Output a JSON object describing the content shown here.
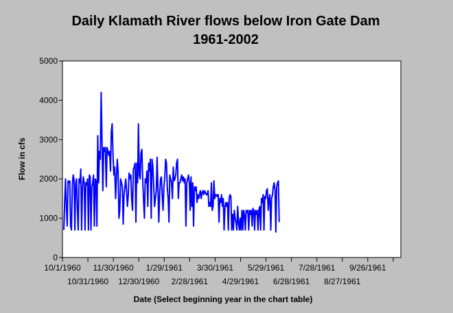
{
  "chart_data": {
    "type": "line",
    "title_line1": "Daily Klamath River flows below Iron Gate Dam",
    "title_line2": "1961-2002",
    "xlabel": "Date (Select beginning year in the chart table)",
    "ylabel": "Flow in cfs",
    "ylim": [
      0,
      5000
    ],
    "yticks": [
      "0",
      "1000",
      "2000",
      "3000",
      "4000",
      "5000"
    ],
    "xticks_upper": [
      "10/1/1960",
      "11/30/1960",
      "1/29/1961",
      "3/30/1961",
      "5/29/1961",
      "7/28/1961",
      "9/26/1961"
    ],
    "xticks_lower": [
      "10/31/1960",
      "12/30/1960",
      "2/28/1961",
      "4/29/1961",
      "6/28/1961",
      "8/27/1961"
    ],
    "grid": false,
    "legend": "none",
    "line_color": "#0000ff",
    "series": [
      {
        "values": [
          [
            0,
            700
          ],
          [
            1,
            1400
          ],
          [
            2,
            2000
          ],
          [
            3,
            1300
          ],
          [
            4,
            800
          ],
          [
            5,
            1950
          ],
          [
            6,
            1900
          ],
          [
            7,
            1950
          ],
          [
            8,
            800
          ],
          [
            9,
            700
          ],
          [
            10,
            1850
          ],
          [
            11,
            2100
          ],
          [
            12,
            2000
          ],
          [
            13,
            700
          ],
          [
            14,
            1900
          ],
          [
            15,
            2000
          ],
          [
            16,
            1200
          ],
          [
            17,
            700
          ],
          [
            18,
            2000
          ],
          [
            19,
            1900
          ],
          [
            20,
            2250
          ],
          [
            21,
            700
          ],
          [
            22,
            1800
          ],
          [
            23,
            2050
          ],
          [
            24,
            1900
          ],
          [
            25,
            700
          ],
          [
            26,
            1900
          ],
          [
            27,
            1850
          ],
          [
            28,
            2000
          ],
          [
            29,
            700
          ],
          [
            30,
            2100
          ],
          [
            31,
            2050
          ],
          [
            32,
            700
          ],
          [
            33,
            1800
          ],
          [
            34,
            1900
          ],
          [
            35,
            2100
          ],
          [
            36,
            800
          ],
          [
            37,
            2000
          ],
          [
            38,
            1950
          ],
          [
            39,
            800
          ],
          [
            40,
            3100
          ],
          [
            41,
            1900
          ],
          [
            42,
            2700
          ],
          [
            43,
            2500
          ],
          [
            44,
            4200
          ],
          [
            45,
            3000
          ],
          [
            46,
            1700
          ],
          [
            47,
            2800
          ],
          [
            48,
            2700
          ],
          [
            49,
            2800
          ],
          [
            50,
            1800
          ],
          [
            51,
            2800
          ],
          [
            52,
            2700
          ],
          [
            53,
            2600
          ],
          [
            54,
            2700
          ],
          [
            55,
            2200
          ],
          [
            56,
            3200
          ],
          [
            57,
            3400
          ],
          [
            58,
            2600
          ],
          [
            59,
            2100
          ],
          [
            60,
            2300
          ],
          [
            61,
            1500
          ],
          [
            62,
            2000
          ],
          [
            63,
            2500
          ],
          [
            64,
            2200
          ],
          [
            65,
            1000
          ],
          [
            66,
            1200
          ],
          [
            67,
            2000
          ],
          [
            68,
            1900
          ],
          [
            69,
            1800
          ],
          [
            70,
            850
          ],
          [
            71,
            1600
          ],
          [
            72,
            1800
          ],
          [
            73,
            2000
          ],
          [
            74,
            1700
          ],
          [
            75,
            1300
          ],
          [
            76,
            1600
          ],
          [
            77,
            2150
          ],
          [
            78,
            2000
          ],
          [
            79,
            2100
          ],
          [
            80,
            1500
          ],
          [
            81,
            1200
          ],
          [
            82,
            2250
          ],
          [
            83,
            2300
          ],
          [
            84,
            2400
          ],
          [
            85,
            900
          ],
          [
            86,
            2400
          ],
          [
            87,
            1900
          ],
          [
            88,
            3400
          ],
          [
            89,
            2100
          ],
          [
            90,
            2000
          ],
          [
            91,
            2650
          ],
          [
            92,
            2750
          ],
          [
            93,
            2000
          ],
          [
            94,
            1500
          ],
          [
            95,
            1000
          ],
          [
            96,
            2000
          ],
          [
            97,
            1900
          ],
          [
            98,
            2200
          ],
          [
            99,
            1300
          ],
          [
            100,
            2400
          ],
          [
            101,
            2200
          ],
          [
            102,
            2500
          ],
          [
            103,
            1000
          ],
          [
            104,
            2500
          ],
          [
            105,
            2300
          ],
          [
            106,
            1800
          ],
          [
            107,
            1300
          ],
          [
            108,
            1500
          ],
          [
            109,
            1700
          ],
          [
            110,
            2550
          ],
          [
            111,
            1700
          ],
          [
            112,
            900
          ],
          [
            113,
            1600
          ],
          [
            114,
            2000
          ],
          [
            115,
            2050
          ],
          [
            116,
            1600
          ],
          [
            117,
            1200
          ],
          [
            118,
            1800
          ],
          [
            119,
            2000
          ],
          [
            120,
            2500
          ],
          [
            121,
            2400
          ],
          [
            122,
            1800
          ],
          [
            123,
            1500
          ],
          [
            124,
            900
          ],
          [
            125,
            2100
          ],
          [
            126,
            2000
          ],
          [
            127,
            1900
          ],
          [
            128,
            1500
          ],
          [
            129,
            2300
          ],
          [
            130,
            1950
          ],
          [
            131,
            2000
          ],
          [
            132,
            2100
          ],
          [
            133,
            2400
          ],
          [
            134,
            2500
          ],
          [
            135,
            1500
          ],
          [
            136,
            1900
          ],
          [
            137,
            1900
          ],
          [
            138,
            2000
          ],
          [
            139,
            2100
          ],
          [
            140,
            1950
          ],
          [
            141,
            2050
          ],
          [
            142,
            1900
          ],
          [
            143,
            2000
          ],
          [
            144,
            800
          ],
          [
            145,
            1900
          ],
          [
            146,
            2000
          ],
          [
            147,
            2100
          ],
          [
            148,
            1900
          ],
          [
            149,
            1200
          ],
          [
            150,
            2050
          ],
          [
            151,
            1300
          ],
          [
            152,
            1900
          ],
          [
            153,
            800
          ],
          [
            154,
            1800
          ],
          [
            155,
            1700
          ],
          [
            156,
            1800
          ],
          [
            157,
            1400
          ],
          [
            158,
            1600
          ],
          [
            159,
            1500
          ],
          [
            160,
            1600
          ],
          [
            161,
            1700
          ],
          [
            162,
            1500
          ],
          [
            163,
            1650
          ],
          [
            164,
            1700
          ],
          [
            165,
            1600
          ],
          [
            166,
            1700
          ],
          [
            167,
            1650
          ],
          [
            168,
            1600
          ],
          [
            169,
            1600
          ],
          [
            170,
            1700
          ],
          [
            171,
            1300
          ],
          [
            172,
            1400
          ],
          [
            173,
            1300
          ],
          [
            174,
            1900
          ],
          [
            175,
            1200
          ],
          [
            176,
            1300
          ],
          [
            177,
            1950
          ],
          [
            178,
            1500
          ],
          [
            179,
            1600
          ],
          [
            180,
            1600
          ],
          [
            181,
            1550
          ],
          [
            182,
            1600
          ],
          [
            183,
            900
          ],
          [
            184,
            1500
          ],
          [
            185,
            1400
          ],
          [
            186,
            1600
          ],
          [
            187,
            1300
          ],
          [
            188,
            1500
          ],
          [
            189,
            700
          ],
          [
            190,
            1300
          ],
          [
            191,
            1400
          ],
          [
            192,
            1300
          ],
          [
            193,
            1400
          ],
          [
            194,
            700
          ],
          [
            195,
            1500
          ],
          [
            196,
            1600
          ],
          [
            197,
            1550
          ],
          [
            198,
            700
          ],
          [
            199,
            1100
          ],
          [
            200,
            700
          ],
          [
            201,
            1200
          ],
          [
            202,
            1000
          ],
          [
            203,
            900
          ],
          [
            204,
            700
          ],
          [
            205,
            1300
          ],
          [
            206,
            900
          ],
          [
            207,
            700
          ],
          [
            208,
            1000
          ],
          [
            209,
            700
          ],
          [
            210,
            1200
          ],
          [
            211,
            700
          ],
          [
            212,
            1200
          ],
          [
            213,
            1100
          ],
          [
            214,
            700
          ],
          [
            215,
            1200
          ],
          [
            216,
            1150
          ],
          [
            217,
            1200
          ],
          [
            218,
            700
          ],
          [
            219,
            1200
          ],
          [
            220,
            1100
          ],
          [
            221,
            1200
          ],
          [
            222,
            800
          ],
          [
            223,
            1250
          ],
          [
            224,
            1200
          ],
          [
            225,
            700
          ],
          [
            226,
            1200
          ],
          [
            227,
            1100
          ],
          [
            228,
            1200
          ],
          [
            229,
            700
          ],
          [
            230,
            1200
          ],
          [
            231,
            1300
          ],
          [
            232,
            700
          ],
          [
            233,
            1500
          ],
          [
            234,
            1400
          ],
          [
            235,
            1600
          ],
          [
            236,
            700
          ],
          [
            237,
            1550
          ],
          [
            238,
            1500
          ],
          [
            239,
            1700
          ],
          [
            240,
            1750
          ],
          [
            241,
            1200
          ],
          [
            242,
            1500
          ],
          [
            243,
            1600
          ],
          [
            244,
            700
          ],
          [
            245,
            1500
          ],
          [
            246,
            1600
          ],
          [
            247,
            1800
          ],
          [
            248,
            1900
          ],
          [
            249,
            1700
          ],
          [
            250,
            650
          ],
          [
            251,
            1800
          ],
          [
            252,
            1900
          ],
          [
            253,
            1950
          ],
          [
            254,
            900
          ]
        ]
      }
    ]
  }
}
